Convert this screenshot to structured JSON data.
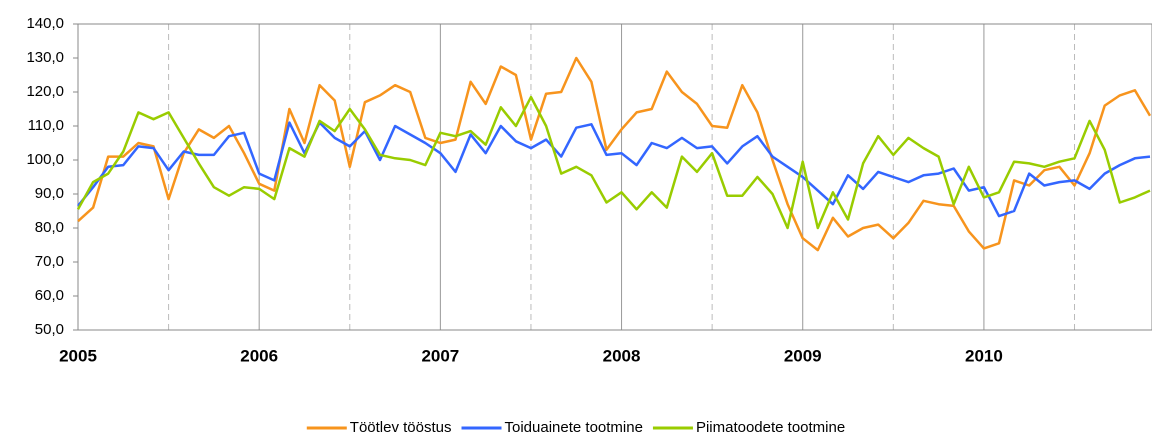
{
  "chart_data": {
    "type": "line",
    "categories": [
      "2005",
      null,
      null,
      null,
      null,
      null,
      null,
      null,
      null,
      null,
      null,
      null,
      "2006",
      null,
      null,
      null,
      null,
      null,
      null,
      null,
      null,
      null,
      null,
      null,
      "2007",
      null,
      null,
      null,
      null,
      null,
      null,
      null,
      null,
      null,
      null,
      null,
      "2008",
      null,
      null,
      null,
      null,
      null,
      null,
      null,
      null,
      null,
      null,
      null,
      "2009",
      null,
      null,
      null,
      null,
      null,
      null,
      null,
      null,
      null,
      null,
      null,
      "2010",
      null,
      null,
      null,
      null,
      null,
      null,
      null,
      null,
      null,
      null,
      null
    ],
    "series": [
      {
        "name": "Töötlev tööstus",
        "color": "#f7941d",
        "values": [
          82,
          86,
          101,
          101,
          105,
          104,
          88.5,
          102,
          109,
          106.5,
          110,
          102,
          93,
          91,
          115,
          105,
          122,
          117.5,
          98,
          117,
          119,
          122,
          120,
          106.5,
          105,
          106,
          123,
          116.5,
          127.5,
          125,
          106,
          119.5,
          120,
          130,
          123,
          103,
          109,
          114,
          115,
          126,
          120,
          116.5,
          110,
          109.5,
          122,
          114,
          100,
          87,
          77,
          73.5,
          83,
          77.5,
          80,
          81,
          77,
          81.5,
          88,
          87,
          86.5,
          79,
          74,
          75.5,
          94,
          92.5,
          97,
          98,
          92.5,
          102,
          116,
          119,
          120.5,
          113
        ]
      },
      {
        "name": "Toiduainete tootmine",
        "color": "#3366ff",
        "values": [
          86.5,
          92,
          98,
          98.5,
          104,
          103.5,
          97,
          102.5,
          101.5,
          101.5,
          107,
          108,
          96,
          94,
          111,
          102,
          111,
          106.5,
          104,
          108.5,
          100,
          110,
          107.5,
          105,
          102,
          96.5,
          107.5,
          102,
          110,
          105.5,
          103.5,
          106,
          101,
          109.5,
          110.5,
          101.5,
          102,
          98.5,
          105,
          103.5,
          106.5,
          103.5,
          104,
          99,
          104,
          107,
          101,
          98,
          95,
          91,
          87,
          95.5,
          91.5,
          96.5,
          95,
          93.5,
          95.5,
          96,
          97.5,
          91,
          92,
          83.5,
          85,
          96,
          92.5,
          93.5,
          94,
          91.5,
          96,
          98.5,
          100.5,
          101
        ]
      },
      {
        "name": "Piimatoodete tootmine",
        "color": "#99cc00",
        "values": [
          85.5,
          93.5,
          96,
          102.5,
          114,
          112,
          114,
          106.5,
          99,
          92,
          89.5,
          92,
          91.5,
          88.5,
          103.5,
          101,
          111.5,
          108.5,
          115,
          109,
          101.5,
          100.5,
          100,
          98.5,
          108,
          107,
          108.5,
          104.5,
          115.5,
          110,
          118.5,
          110,
          96,
          98,
          95.5,
          87.5,
          90.5,
          85.5,
          90.5,
          86,
          101,
          96.5,
          102,
          89.5,
          89.5,
          95,
          90,
          80,
          99.5,
          80,
          90.5,
          82.5,
          99,
          107,
          101.5,
          106.5,
          103.5,
          101,
          87,
          98,
          89,
          90.5,
          99.5,
          99,
          98,
          99.5,
          100.5,
          111.5,
          103,
          87.5,
          89,
          91
        ]
      }
    ],
    "ylim": [
      50,
      140
    ],
    "yticks": [
      {
        "value": 50,
        "label": "50,0"
      },
      {
        "value": 60,
        "label": "60,0"
      },
      {
        "value": 70,
        "label": "70,0"
      },
      {
        "value": 80,
        "label": "80,0"
      },
      {
        "value": 90,
        "label": "90,0"
      },
      {
        "value": 100,
        "label": "100,0"
      },
      {
        "value": 110,
        "label": "110,0"
      },
      {
        "value": 120,
        "label": "120,0"
      },
      {
        "value": 130,
        "label": "130,0"
      },
      {
        "value": 140,
        "label": "140,0"
      }
    ],
    "legend": "bottom"
  }
}
